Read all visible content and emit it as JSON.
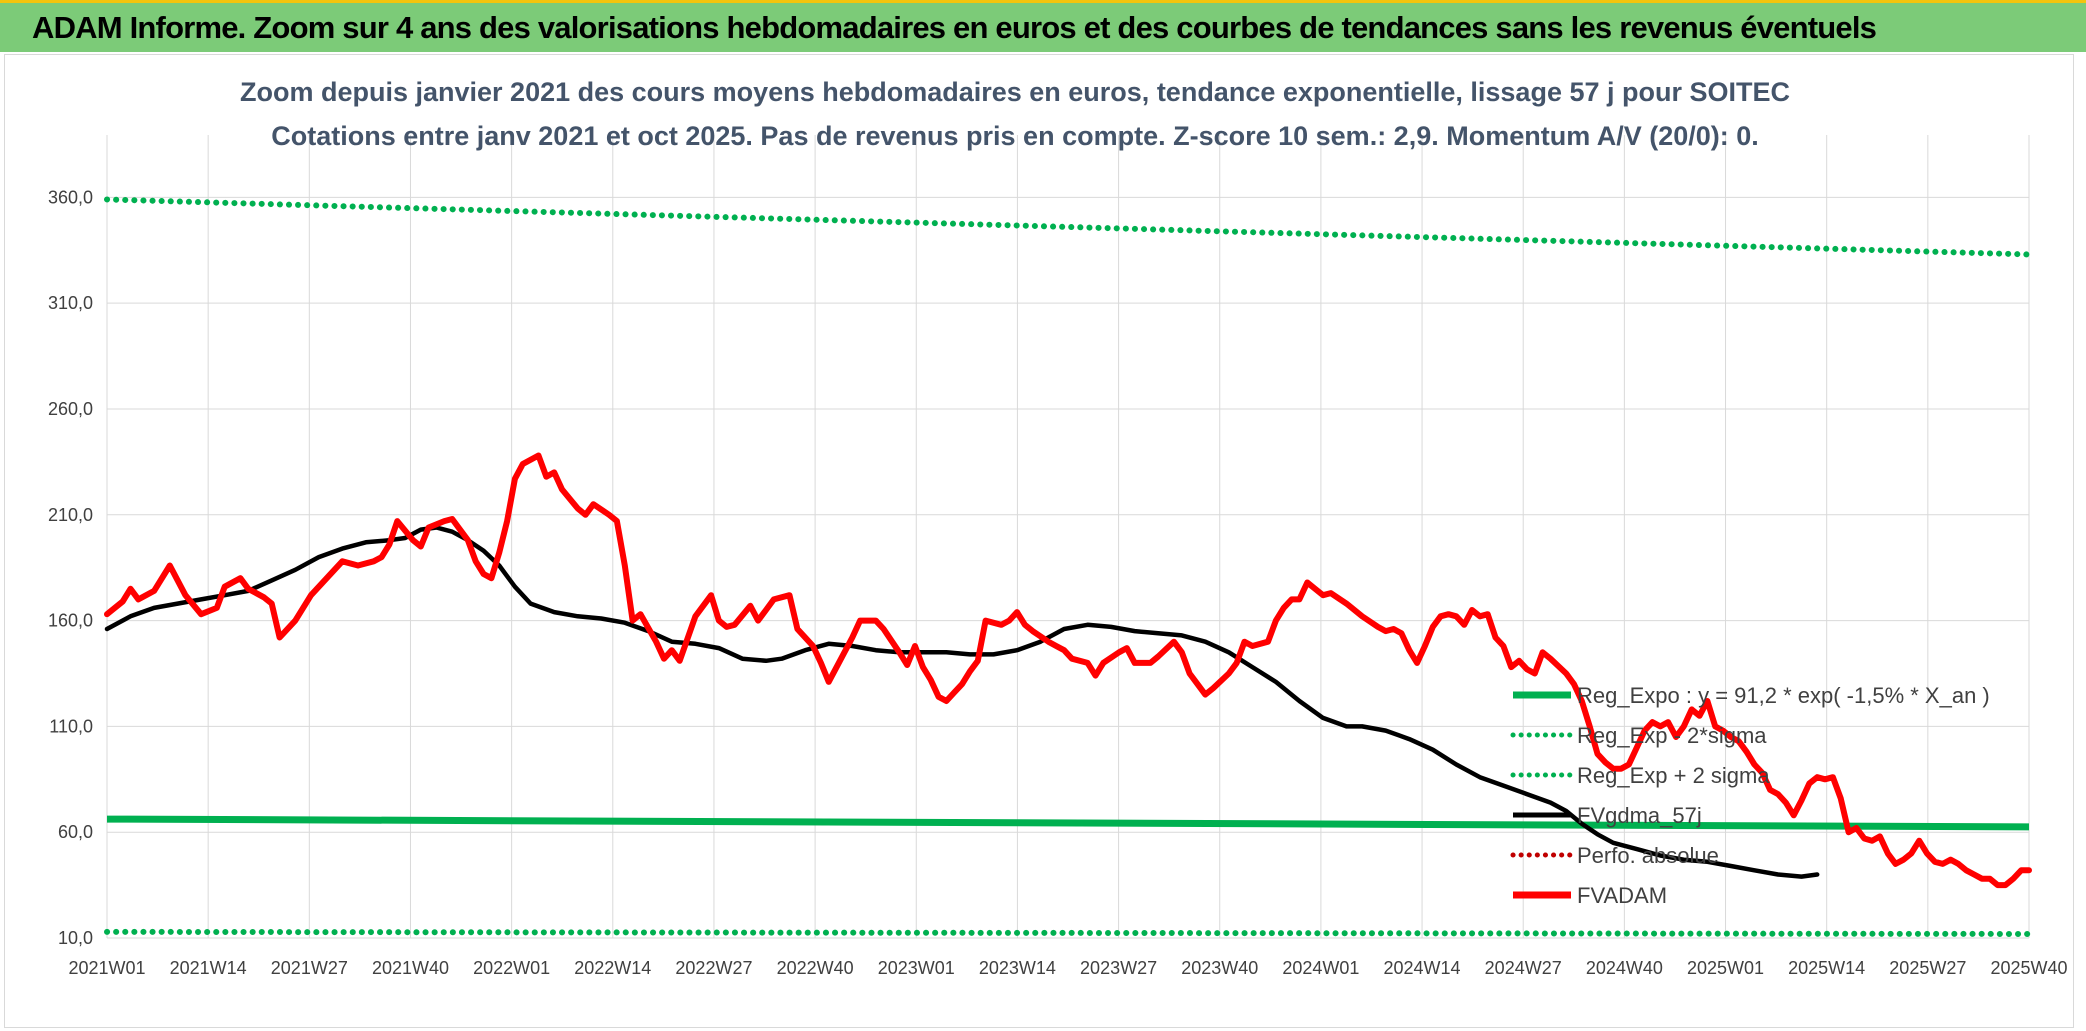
{
  "banner": {
    "title": "ADAM Informe. Zoom sur 4 ans des valorisations hebdomadaires en euros et des courbes de tendances sans les revenus éventuels"
  },
  "colors": {
    "banner_bg": "#7ccb78",
    "banner_accent": "#f3c40d",
    "reg_expo": "#00b050",
    "fvgdma": "#000000",
    "fvadam": "#ff0000",
    "perfo": "#c00000",
    "grid": "#d9d9d9"
  },
  "chart_data": {
    "type": "line",
    "title": "Zoom depuis janvier 2021 des cours moyens hebdomadaires en euros, tendance exponentielle, lissage 57 j pour SOITEC",
    "subtitle": "Cotations entre janv 2021 et oct 2025. Pas de revenus pris en compte. Z-score 10 sem.: 2,9. Momentum A/V (20/0): 0.",
    "xlabel": "",
    "ylabel": "",
    "ylim": [
      10,
      380
    ],
    "yticks": [
      10,
      60,
      110,
      160,
      210,
      260,
      310,
      360
    ],
    "ytick_labels": [
      "10,0",
      "60,0",
      "110,0",
      "160,0",
      "210,0",
      "260,0",
      "310,0",
      "360,0"
    ],
    "xtick_labels": [
      "2021W01",
      "2021W14",
      "2021W27",
      "2021W40",
      "2022W01",
      "2022W14",
      "2022W27",
      "2022W40",
      "2023W01",
      "2023W14",
      "2023W27",
      "2023W40",
      "2024W01",
      "2024W14",
      "2024W27",
      "2024W40",
      "2025W01",
      "2025W14",
      "2025W27",
      "2025W40"
    ],
    "grid": true,
    "legend_position": "bottom-right",
    "series": [
      {
        "name": "Reg_Expo : y = 91,2 * exp( -1,5% *  X_an )",
        "style": "solid-thick",
        "color": "#00b050",
        "start": 66.2,
        "end": 62.5
      },
      {
        "name": "Reg_Exp - 2*sigma",
        "style": "dotted",
        "color": "#00b050",
        "start": 12.9,
        "end": 11.9
      },
      {
        "name": "Reg_Exp + 2 sigma",
        "style": "dotted",
        "color": "#00b050",
        "start": 359,
        "end": 333
      },
      {
        "name": "FVgdma_57j",
        "style": "solid",
        "color": "#000000",
        "points": [
          [
            0,
            156
          ],
          [
            3,
            162
          ],
          [
            6,
            166
          ],
          [
            9,
            168
          ],
          [
            12,
            170
          ],
          [
            15,
            172
          ],
          [
            18,
            174
          ],
          [
            21,
            179
          ],
          [
            24,
            184
          ],
          [
            27,
            190
          ],
          [
            30,
            194
          ],
          [
            33,
            197
          ],
          [
            36,
            198
          ],
          [
            38,
            199
          ],
          [
            40,
            203
          ],
          [
            42,
            204
          ],
          [
            44,
            202
          ],
          [
            46,
            198
          ],
          [
            48,
            193
          ],
          [
            50,
            186
          ],
          [
            52,
            176
          ],
          [
            54,
            168
          ],
          [
            57,
            164
          ],
          [
            60,
            162
          ],
          [
            63,
            161
          ],
          [
            66,
            159
          ],
          [
            69,
            155
          ],
          [
            72,
            150
          ],
          [
            75,
            149
          ],
          [
            78,
            147
          ],
          [
            81,
            142
          ],
          [
            84,
            141
          ],
          [
            86,
            142
          ],
          [
            89,
            146
          ],
          [
            92,
            149
          ],
          [
            95,
            148
          ],
          [
            98,
            146
          ],
          [
            101,
            145
          ],
          [
            104,
            145
          ],
          [
            107,
            145
          ],
          [
            110,
            144
          ],
          [
            113,
            144
          ],
          [
            116,
            146
          ],
          [
            119,
            150
          ],
          [
            122,
            156
          ],
          [
            125,
            158
          ],
          [
            128,
            157
          ],
          [
            131,
            155
          ],
          [
            134,
            154
          ],
          [
            137,
            153
          ],
          [
            140,
            150
          ],
          [
            143,
            145
          ],
          [
            146,
            138
          ],
          [
            149,
            131
          ],
          [
            152,
            122
          ],
          [
            155,
            114
          ],
          [
            158,
            110
          ],
          [
            160,
            110
          ],
          [
            163,
            108
          ],
          [
            166,
            104
          ],
          [
            169,
            99
          ],
          [
            172,
            92
          ],
          [
            175,
            86
          ],
          [
            178,
            82
          ],
          [
            181,
            78
          ],
          [
            184,
            74
          ],
          [
            186,
            70
          ],
          [
            188,
            64
          ],
          [
            190,
            59
          ],
          [
            192,
            55
          ],
          [
            195,
            52
          ],
          [
            198,
            49
          ],
          [
            201,
            47
          ],
          [
            204,
            46
          ],
          [
            207,
            44
          ],
          [
            210,
            42
          ],
          [
            213,
            40
          ],
          [
            216,
            39
          ],
          [
            218,
            40
          ]
        ]
      },
      {
        "name": "Perfo. absolue",
        "style": "dotted",
        "color": "#c00000",
        "points": []
      },
      {
        "name": "FVADAM",
        "style": "solid-thick",
        "color": "#ff0000",
        "points": [
          [
            0,
            163
          ],
          [
            2,
            169
          ],
          [
            3,
            175
          ],
          [
            4,
            170
          ],
          [
            6,
            174
          ],
          [
            8,
            186
          ],
          [
            10,
            172
          ],
          [
            12,
            163
          ],
          [
            14,
            166
          ],
          [
            15,
            176
          ],
          [
            17,
            180
          ],
          [
            18,
            175
          ],
          [
            20,
            171
          ],
          [
            21,
            168
          ],
          [
            22,
            152
          ],
          [
            24,
            160
          ],
          [
            26,
            172
          ],
          [
            28,
            180
          ],
          [
            30,
            188
          ],
          [
            32,
            186
          ],
          [
            34,
            188
          ],
          [
            35,
            190
          ],
          [
            36,
            196
          ],
          [
            37,
            207
          ],
          [
            39,
            198
          ],
          [
            40,
            195
          ],
          [
            41,
            204
          ],
          [
            43,
            207
          ],
          [
            44,
            208
          ],
          [
            46,
            198
          ],
          [
            47,
            188
          ],
          [
            48,
            182
          ],
          [
            49,
            180
          ],
          [
            50,
            192
          ],
          [
            51,
            207
          ],
          [
            52,
            227
          ],
          [
            53,
            234
          ],
          [
            55,
            238
          ],
          [
            56,
            228
          ],
          [
            57,
            230
          ],
          [
            58,
            222
          ],
          [
            60,
            213
          ],
          [
            61,
            210
          ],
          [
            62,
            215
          ],
          [
            64,
            210
          ],
          [
            65,
            207
          ],
          [
            66,
            186
          ],
          [
            67,
            160
          ],
          [
            68,
            163
          ],
          [
            70,
            150
          ],
          [
            71,
            142
          ],
          [
            72,
            146
          ],
          [
            73,
            141
          ],
          [
            75,
            162
          ],
          [
            77,
            172
          ],
          [
            78,
            160
          ],
          [
            79,
            157
          ],
          [
            80,
            158
          ],
          [
            82,
            167
          ],
          [
            83,
            160
          ],
          [
            84,
            165
          ],
          [
            85,
            170
          ],
          [
            87,
            172
          ],
          [
            88,
            156
          ],
          [
            90,
            148
          ],
          [
            91,
            140
          ],
          [
            92,
            131
          ],
          [
            93,
            138
          ],
          [
            95,
            152
          ],
          [
            96,
            160
          ],
          [
            98,
            160
          ],
          [
            99,
            156
          ],
          [
            101,
            145
          ],
          [
            102,
            139
          ],
          [
            103,
            148
          ],
          [
            104,
            138
          ],
          [
            105,
            132
          ],
          [
            106,
            124
          ],
          [
            107,
            122
          ],
          [
            108,
            126
          ],
          [
            109,
            130
          ],
          [
            110,
            136
          ],
          [
            111,
            141
          ],
          [
            112,
            160
          ],
          [
            114,
            158
          ],
          [
            115,
            160
          ],
          [
            116,
            164
          ],
          [
            117,
            158
          ],
          [
            118,
            155
          ],
          [
            120,
            150
          ],
          [
            121,
            148
          ],
          [
            122,
            146
          ],
          [
            123,
            142
          ],
          [
            125,
            140
          ],
          [
            126,
            134
          ],
          [
            127,
            140
          ],
          [
            129,
            145
          ],
          [
            130,
            147
          ],
          [
            131,
            140
          ],
          [
            133,
            140
          ],
          [
            134,
            143
          ],
          [
            136,
            150
          ],
          [
            137,
            145
          ],
          [
            138,
            135
          ],
          [
            140,
            125
          ],
          [
            141,
            128
          ],
          [
            143,
            135
          ],
          [
            144,
            140
          ],
          [
            145,
            150
          ],
          [
            146,
            148
          ],
          [
            148,
            150
          ],
          [
            149,
            160
          ],
          [
            150,
            166
          ],
          [
            151,
            170
          ],
          [
            152,
            170
          ],
          [
            153,
            178
          ],
          [
            154,
            175
          ],
          [
            155,
            172
          ],
          [
            156,
            173
          ],
          [
            158,
            168
          ],
          [
            160,
            162
          ],
          [
            162,
            157
          ],
          [
            163,
            155
          ],
          [
            164,
            156
          ],
          [
            165,
            154
          ],
          [
            166,
            146
          ],
          [
            167,
            140
          ],
          [
            168,
            148
          ],
          [
            169,
            157
          ],
          [
            170,
            162
          ],
          [
            171,
            163
          ],
          [
            172,
            162
          ],
          [
            173,
            158
          ],
          [
            174,
            165
          ],
          [
            175,
            162
          ],
          [
            176,
            163
          ],
          [
            177,
            152
          ],
          [
            178,
            148
          ],
          [
            179,
            138
          ],
          [
            180,
            141
          ],
          [
            181,
            137
          ],
          [
            182,
            135
          ],
          [
            183,
            145
          ],
          [
            184,
            142
          ],
          [
            186,
            135
          ],
          [
            187,
            130
          ],
          [
            188,
            122
          ],
          [
            189,
            110
          ],
          [
            190,
            97
          ],
          [
            191,
            93
          ],
          [
            192,
            90
          ],
          [
            193,
            90
          ],
          [
            194,
            92
          ],
          [
            195,
            100
          ],
          [
            196,
            108
          ],
          [
            197,
            112
          ],
          [
            198,
            110
          ],
          [
            199,
            112
          ],
          [
            200,
            105
          ],
          [
            201,
            110
          ],
          [
            202,
            118
          ],
          [
            203,
            115
          ],
          [
            204,
            122
          ],
          [
            205,
            110
          ],
          [
            206,
            108
          ],
          [
            207,
            105
          ],
          [
            208,
            103
          ],
          [
            209,
            98
          ],
          [
            210,
            92
          ],
          [
            211,
            88
          ],
          [
            212,
            80
          ],
          [
            213,
            78
          ],
          [
            214,
            74
          ],
          [
            215,
            68
          ],
          [
            216,
            75
          ],
          [
            217,
            83
          ],
          [
            218,
            86
          ],
          [
            219,
            85
          ],
          [
            220,
            86
          ],
          [
            221,
            76
          ],
          [
            222,
            60
          ],
          [
            223,
            62
          ],
          [
            224,
            57
          ],
          [
            225,
            56
          ],
          [
            226,
            58
          ],
          [
            227,
            50
          ],
          [
            228,
            45
          ],
          [
            229,
            47
          ],
          [
            230,
            50
          ],
          [
            231,
            56
          ],
          [
            232,
            50
          ],
          [
            233,
            46
          ],
          [
            234,
            45
          ],
          [
            235,
            47
          ],
          [
            236,
            45
          ],
          [
            237,
            42
          ],
          [
            238,
            40
          ],
          [
            239,
            38
          ],
          [
            240,
            38
          ],
          [
            241,
            35
          ],
          [
            242,
            35
          ],
          [
            243,
            38
          ],
          [
            244,
            42
          ],
          [
            245,
            42
          ]
        ]
      }
    ]
  }
}
